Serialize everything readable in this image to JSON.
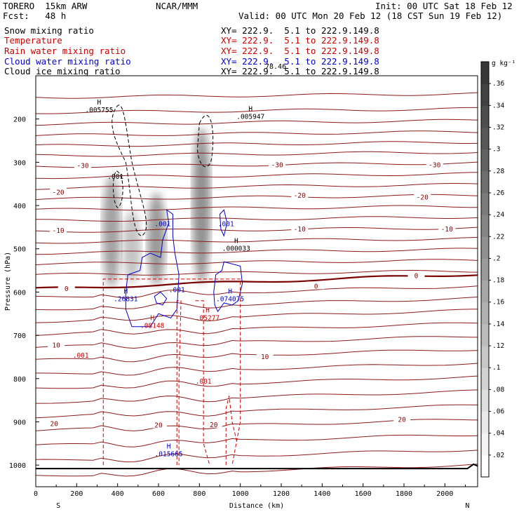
{
  "header": {
    "model": "TORERO  15km ARW",
    "center": "NCAR/MMM",
    "init": "Init: 00 UTC Sat 18 Feb 12",
    "fcst": "Fcst:   48 h",
    "valid": "Valid: 00 UTC Mon 20 Feb 12 (18 CST Sun 19 Feb 12)"
  },
  "fields": [
    {
      "name": "Snow mixing ratio",
      "xy": "XY= 222.9.  5.1 to 222.9.149.8",
      "color": "#000000"
    },
    {
      "name": "Temperature",
      "xy": "XY= 222.9.  5.1 to 222.9.149.8",
      "color": "#cc0000"
    },
    {
      "name": "Rain water mixing ratio",
      "xy": "XY= 222.9.  5.1 to 222.9.149.8",
      "color": "#cc0000"
    },
    {
      "name": "Cloud water mixing ratio",
      "xy": "XY= 222.9.  5.1 to 222.9.149.8",
      "color": "#0000cc"
    },
    {
      "name": "Cloud ice mixing ratio",
      "xy": "XY= 222.9.  5.1 to 222.9.149.8",
      "color": "#000000"
    }
  ],
  "overlap_text": "78.46",
  "chart_data": {
    "type": "contour",
    "xlabel": "Distance (km)",
    "ylabel": "Pressure (hPa)",
    "xlim": [
      0,
      2160
    ],
    "ylim": [
      1050,
      100
    ],
    "x_ticks": [
      0,
      200,
      400,
      600,
      800,
      1000,
      1200,
      1400,
      1600,
      1800,
      2000
    ],
    "y_ticks": [
      200,
      300,
      400,
      500,
      600,
      700,
      800,
      900,
      1000
    ],
    "end_labels": {
      "left": "S",
      "right": "N"
    },
    "colorbar": {
      "unit": "g kg⁻¹",
      "levels": [
        ".02",
        ".04",
        ".06",
        ".08",
        ".1",
        ".12",
        ".14",
        ".16",
        ".18",
        ".2",
        ".22",
        ".24",
        ".26",
        ".28",
        ".3",
        ".32",
        ".34",
        ".36"
      ]
    },
    "temperature_labels": [
      {
        "x": 230,
        "p": 308,
        "t": "-30"
      },
      {
        "x": 1180,
        "p": 307,
        "t": "-30"
      },
      {
        "x": 1950,
        "p": 307,
        "t": "-30"
      },
      {
        "x": 110,
        "p": 370,
        "t": "-20"
      },
      {
        "x": 1290,
        "p": 377,
        "t": "-20"
      },
      {
        "x": 1890,
        "p": 381,
        "t": "-20"
      },
      {
        "x": 110,
        "p": 458,
        "t": "-10"
      },
      {
        "x": 1290,
        "p": 455,
        "t": "-10"
      },
      {
        "x": 2010,
        "p": 455,
        "t": "-10"
      },
      {
        "x": 150,
        "p": 593,
        "t": "0"
      },
      {
        "x": 1370,
        "p": 587,
        "t": "0"
      },
      {
        "x": 1860,
        "p": 563,
        "t": "0"
      },
      {
        "x": 100,
        "p": 723,
        "t": "10"
      },
      {
        "x": 1120,
        "p": 750,
        "t": "10"
      },
      {
        "x": 90,
        "p": 905,
        "t": "20"
      },
      {
        "x": 600,
        "p": 908,
        "t": "20"
      },
      {
        "x": 870,
        "p": 907,
        "t": "20"
      },
      {
        "x": 1790,
        "p": 895,
        "t": "20"
      }
    ],
    "extrema": [
      {
        "x": 310,
        "p": 170,
        "label": "H",
        "value": ".005755",
        "color": "#000000"
      },
      {
        "x": 1050,
        "p": 185,
        "label": "H",
        "value": ".005947",
        "color": "#000000"
      },
      {
        "x": 980,
        "p": 490,
        "label": "H",
        "value": ".000033",
        "color": "#000000"
      },
      {
        "x": 440,
        "p": 607,
        "label": "H",
        "value": ".26831",
        "color": "#0000cc"
      },
      {
        "x": 950,
        "p": 607,
        "label": "H",
        "value": ".074075",
        "color": "#0000cc"
      },
      {
        "x": 570,
        "p": 668,
        "label": "H",
        "value": ".08148",
        "color": "#cc0000"
      },
      {
        "x": 840,
        "p": 650,
        "label": "H",
        "value": ".05277",
        "color": "#cc0000"
      },
      {
        "x": 650,
        "p": 965,
        "label": "H",
        "value": ".015665",
        "color": "#0000cc"
      }
    ],
    "contour_labels": [
      {
        "x": 390,
        "p": 338,
        "t": ".001",
        "color": "#000000"
      },
      {
        "x": 620,
        "p": 448,
        "t": ".001",
        "color": "#0000cc"
      },
      {
        "x": 930,
        "p": 448,
        "t": ".001",
        "color": "#0000cc"
      },
      {
        "x": 690,
        "p": 600,
        "t": ".001",
        "color": "#0000cc"
      },
      {
        "x": 820,
        "p": 812,
        "t": ".001",
        "color": "#cc0000"
      },
      {
        "x": 220,
        "p": 752,
        "t": ".001",
        "color": "#cc0000"
      }
    ],
    "snow_shading": [
      {
        "x": 370,
        "p1": 330,
        "p2": 590,
        "intensity": 0.55
      },
      {
        "x": 590,
        "p1": 370,
        "p2": 585,
        "intensity": 0.6
      },
      {
        "x": 810,
        "p1": 220,
        "p2": 580,
        "intensity": 0.65
      },
      {
        "x": 470,
        "p1": 410,
        "p2": 580,
        "intensity": 0.35
      }
    ]
  }
}
